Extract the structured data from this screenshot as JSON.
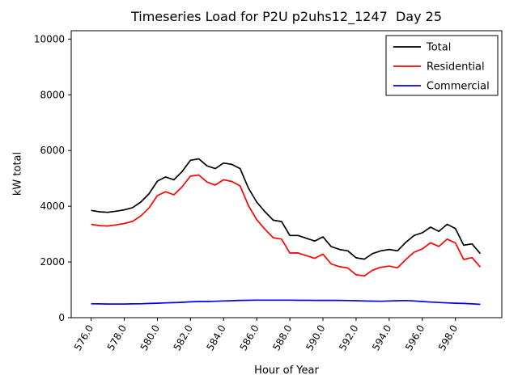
{
  "chart_data": {
    "type": "line",
    "title": "Timeseries Load for P2U p2uhs12_1247  Day 25",
    "xlabel": "Hour of Year",
    "ylabel": "kW total",
    "xlim": [
      574.8,
      600.8
    ],
    "ylim": [
      0,
      10300
    ],
    "xticks": [
      576,
      578,
      580,
      582,
      584,
      586,
      588,
      590,
      592,
      594,
      596,
      598
    ],
    "xtick_labels": [
      "576.0",
      "578.0",
      "580.0",
      "582.0",
      "584.0",
      "586.0",
      "588.0",
      "590.0",
      "592.0",
      "594.0",
      "596.0",
      "598.0"
    ],
    "yticks": [
      0,
      2000,
      4000,
      6000,
      8000,
      10000
    ],
    "grid": false,
    "legend_position": "upper right",
    "x": [
      576.0,
      576.5,
      577.0,
      577.5,
      578.0,
      578.5,
      579.0,
      579.5,
      580.0,
      580.5,
      581.0,
      581.5,
      582.0,
      582.5,
      583.0,
      583.5,
      584.0,
      584.5,
      585.0,
      585.5,
      586.0,
      586.5,
      587.0,
      587.5,
      588.0,
      588.5,
      589.0,
      589.5,
      590.0,
      590.5,
      591.0,
      591.5,
      592.0,
      592.5,
      593.0,
      593.5,
      594.0,
      594.5,
      595.0,
      595.5,
      596.0,
      596.5,
      597.0,
      597.5,
      598.0,
      598.5,
      599.0,
      599.5
    ],
    "series": [
      {
        "name": "Total",
        "color": "#000000",
        "values": [
          3850,
          3800,
          3780,
          3820,
          3870,
          3950,
          4150,
          4450,
          4900,
          5050,
          4950,
          5250,
          5650,
          5700,
          5450,
          5350,
          5550,
          5500,
          5350,
          4650,
          4150,
          3800,
          3500,
          3450,
          2950,
          2950,
          2850,
          2750,
          2900,
          2550,
          2450,
          2400,
          2150,
          2100,
          2300,
          2400,
          2450,
          2400,
          2700,
          2950,
          3050,
          3250,
          3100,
          3350,
          3200,
          2600,
          2650,
          2300
        ]
      },
      {
        "name": "Residential",
        "color": "#ff0000",
        "values": [
          3350,
          3305,
          3290,
          3330,
          3380,
          3455,
          3650,
          3940,
          4380,
          4520,
          4410,
          4700,
          5080,
          5120,
          4870,
          4760,
          4950,
          4890,
          4730,
          4025,
          3520,
          3170,
          2870,
          2820,
          2320,
          2325,
          2225,
          2130,
          2280,
          1930,
          1830,
          1785,
          1540,
          1500,
          1705,
          1810,
          1850,
          1790,
          2085,
          2350,
          2470,
          2690,
          2555,
          2820,
          2680,
          2090,
          2155,
          1820
        ]
      },
      {
        "name": "Commercial",
        "color": "#0000ff",
        "values": [
          500,
          495,
          490,
          490,
          490,
          495,
          500,
          510,
          520,
          530,
          540,
          550,
          570,
          580,
          580,
          590,
          600,
          610,
          620,
          625,
          630,
          630,
          630,
          630,
          630,
          625,
          625,
          620,
          620,
          620,
          620,
          615,
          610,
          600,
          595,
          590,
          600,
          610,
          615,
          600,
          580,
          560,
          545,
          530,
          520,
          510,
          495,
          480
        ]
      }
    ]
  }
}
